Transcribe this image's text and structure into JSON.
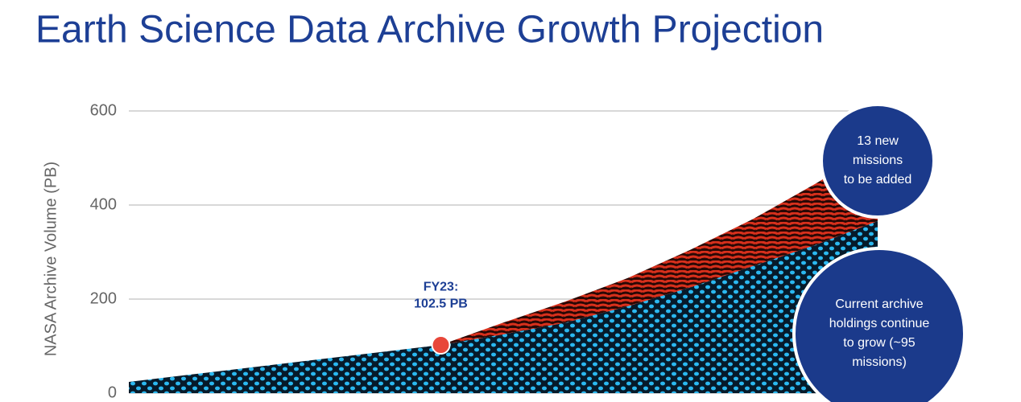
{
  "chart_data": {
    "type": "stacked_area",
    "title": "Earth Science Data Archive Growth Projection",
    "y_label": "NASA Archive Volume (PB)",
    "categories": [
      null,
      null,
      null,
      null,
      null,
      null,
      null,
      null,
      null,
      null,
      null,
      null,
      null
    ],
    "series": [
      {
        "name": "Current archive",
        "color": "#2bb8f0",
        "values": [
          24,
          39.7,
          55.4,
          71.1,
          86.8,
          102.5,
          125,
          150,
          185,
          225,
          270,
          315,
          366
        ]
      },
      {
        "name": "New missions",
        "color": "#d8301c",
        "values": [
          0,
          0,
          0,
          0,
          0,
          0,
          25,
          45,
          60,
          80,
          100,
          130,
          159
        ]
      }
    ],
    "ylim": [
      0,
      600
    ],
    "yticks": [
      0,
      200,
      400,
      600
    ],
    "grid": true,
    "highlight": {
      "series": 0,
      "index": 5,
      "color": "#e8473a",
      "lines": [
        "FY23:",
        "102.5 PB"
      ]
    },
    "callouts": [
      {
        "lines": [
          "13 new",
          "missions",
          "to be added"
        ],
        "color": "#1b3a8b"
      },
      {
        "lines": [
          "Current archive",
          "holdings continue",
          "to grow (~95",
          "missions)"
        ],
        "color": "#1b3a8b"
      }
    ]
  }
}
